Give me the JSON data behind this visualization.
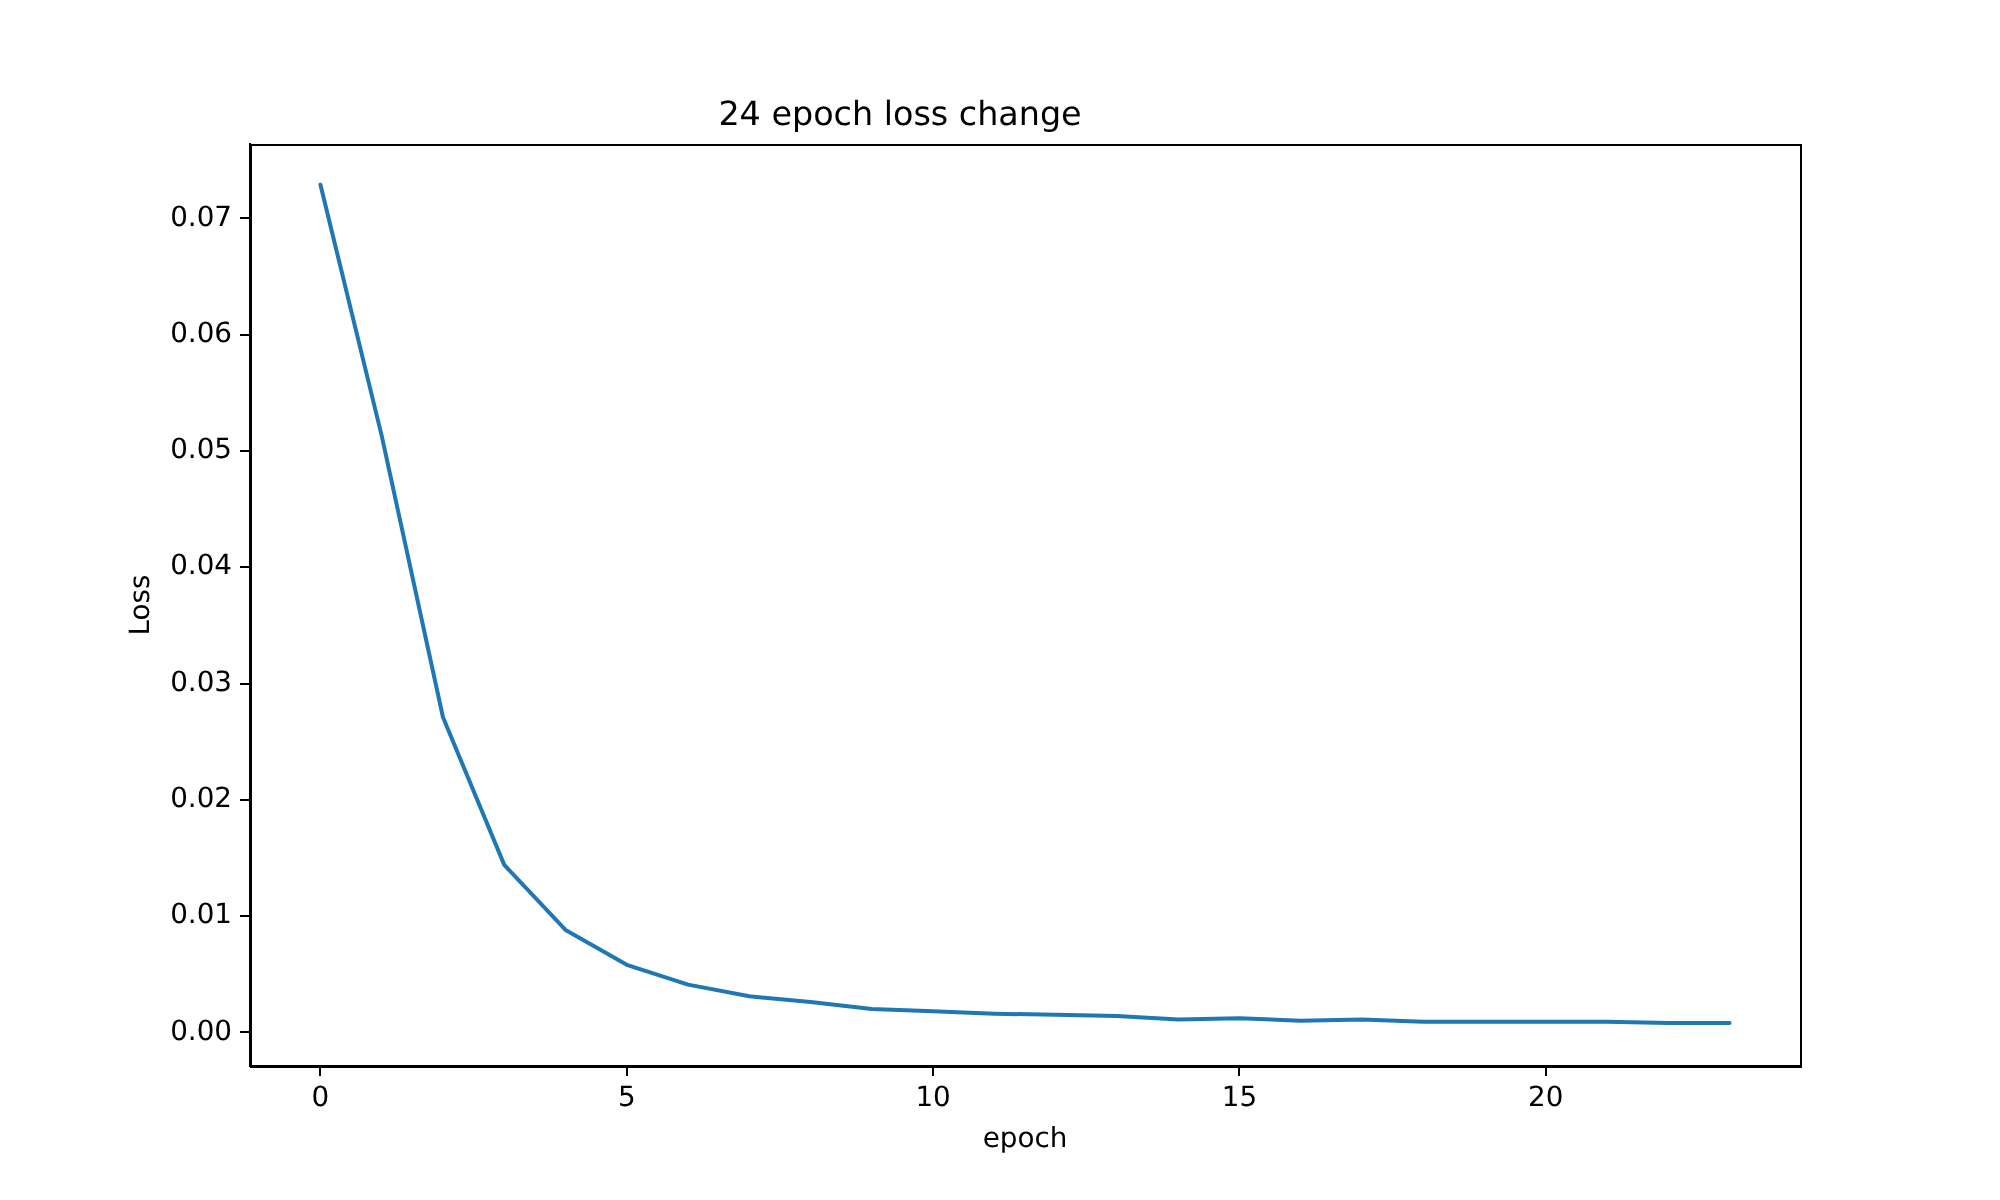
{
  "chart_data": {
    "type": "line",
    "title": "24 epoch loss change",
    "xlabel": "epoch",
    "ylabel": "Loss",
    "x": [
      0,
      1,
      2,
      3,
      4,
      5,
      6,
      7,
      8,
      9,
      10,
      11,
      12,
      13,
      14,
      15,
      16,
      17,
      18,
      19,
      20,
      21,
      22,
      23
    ],
    "series": [
      {
        "color": "#1f77b4",
        "values": [
          0.0729,
          0.0513,
          0.0271,
          0.0144,
          0.0088,
          0.0058,
          0.0041,
          0.0031,
          0.0026,
          0.002,
          0.0018,
          0.0016,
          0.0015,
          0.0014,
          0.0011,
          0.0012,
          0.001,
          0.0011,
          0.0009,
          0.0009,
          0.0009,
          0.0009,
          0.0008,
          0.0008
        ]
      }
    ],
    "xlim": [
      -1.15,
      24.15
    ],
    "ylim": [
      -0.0029,
      0.0764
    ],
    "xticks": [
      0,
      5,
      10,
      15,
      20
    ],
    "yticks": [
      {
        "value": 0,
        "label": "0.00"
      },
      0.01,
      0.02,
      0.03,
      0.04,
      0.05,
      0.06,
      0.07
    ],
    "grid": false,
    "marker": "none",
    "line_style": "solid"
  }
}
